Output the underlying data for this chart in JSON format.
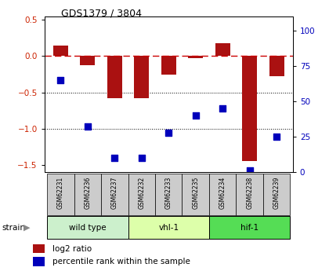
{
  "title": "GDS1379 / 3804",
  "samples": [
    "GSM62231",
    "GSM62236",
    "GSM62237",
    "GSM62232",
    "GSM62233",
    "GSM62235",
    "GSM62234",
    "GSM62238",
    "GSM62239"
  ],
  "log2_ratio": [
    0.15,
    -0.12,
    -0.58,
    -0.58,
    -0.25,
    -0.03,
    0.18,
    -1.45,
    -0.28
  ],
  "percentile": [
    65,
    32,
    10,
    10,
    28,
    40,
    45,
    1,
    25
  ],
  "bar_color": "#aa1111",
  "dot_color": "#0000bb",
  "ylim_left": [
    -1.6,
    0.55
  ],
  "ylim_right": [
    0,
    110
  ],
  "yticks_left": [
    -1.5,
    -1.0,
    -0.5,
    0.0,
    0.5
  ],
  "yticks_right": [
    0,
    25,
    50,
    75,
    100
  ],
  "hline_y": 0.0,
  "dotted_lines": [
    -0.5,
    -1.0
  ],
  "bar_width": 0.55,
  "background_color": "#ffffff",
  "group_data": [
    {
      "label": "wild type",
      "start": 0,
      "end": 2,
      "color": "#ccf0cc"
    },
    {
      "label": "vhl-1",
      "start": 3,
      "end": 5,
      "color": "#ddffaa"
    },
    {
      "label": "hif-1",
      "start": 6,
      "end": 8,
      "color": "#55dd55"
    }
  ],
  "legend_items": [
    {
      "label": "log2 ratio",
      "color": "#aa1111"
    },
    {
      "label": "percentile rank within the sample",
      "color": "#0000bb"
    }
  ]
}
